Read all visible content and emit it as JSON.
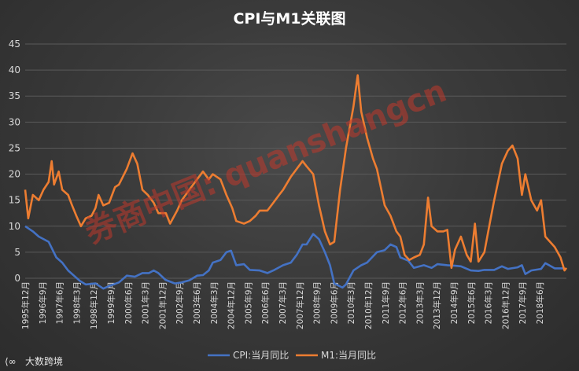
{
  "chart_data": {
    "type": "line",
    "title": "CPI与M1关联图",
    "ylim": [
      0,
      45
    ],
    "y_ticks": [
      0,
      5,
      10,
      15,
      20,
      25,
      30,
      35,
      40,
      45
    ],
    "x_ticks": [
      "1995年12月",
      "1996年9月",
      "1997年6月",
      "1998年3月",
      "1998年12月",
      "1999年9月",
      "2000年6月",
      "2001年3月",
      "2001年12月",
      "2002年9月",
      "2003年6月",
      "2004年3月",
      "2004年12月",
      "2005年9月",
      "2006年6月",
      "2007年3月",
      "2007年12月",
      "2008年9月",
      "2009年6月",
      "2010年3月",
      "2010年12月",
      "2011年9月",
      "2012年6月",
      "2013年3月",
      "2013年12月",
      "2014年9月",
      "2015年6月",
      "2016年3月",
      "2016年12月",
      "2017年9月",
      "2018年6月"
    ],
    "x_start": "1995年12月",
    "x_end": "2018年12月",
    "grid": true,
    "legend_position": "bottom",
    "series": [
      {
        "name": "CPI:当月同比",
        "color": "#4472c4",
        "points": [
          [
            1995.92,
            10
          ],
          [
            1996.25,
            9
          ],
          [
            1996.5,
            8
          ],
          [
            1996.92,
            7
          ],
          [
            1997.25,
            4
          ],
          [
            1997.5,
            3
          ],
          [
            1997.75,
            1.5
          ],
          [
            1998.0,
            0.5
          ],
          [
            1998.25,
            -0.5
          ],
          [
            1998.5,
            -1.2
          ],
          [
            1998.92,
            -1
          ],
          [
            1999.25,
            -2
          ],
          [
            1999.5,
            -1.5
          ],
          [
            1999.92,
            -0.8
          ],
          [
            2000.25,
            0.5
          ],
          [
            2000.6,
            0.3
          ],
          [
            2000.92,
            1
          ],
          [
            2001.2,
            1
          ],
          [
            2001.4,
            1.5
          ],
          [
            2001.6,
            1
          ],
          [
            2001.9,
            -0.3
          ],
          [
            2002.3,
            -1
          ],
          [
            2002.6,
            -0.8
          ],
          [
            2002.92,
            -0.4
          ],
          [
            2003.25,
            0.5
          ],
          [
            2003.5,
            0.6
          ],
          [
            2003.75,
            1.5
          ],
          [
            2003.92,
            3
          ],
          [
            2004.25,
            3.5
          ],
          [
            2004.5,
            5
          ],
          [
            2004.7,
            5.3
          ],
          [
            2004.92,
            2.5
          ],
          [
            2005.25,
            2.7
          ],
          [
            2005.5,
            1.6
          ],
          [
            2005.92,
            1.5
          ],
          [
            2006.25,
            1
          ],
          [
            2006.5,
            1.5
          ],
          [
            2006.92,
            2.5
          ],
          [
            2007.25,
            3
          ],
          [
            2007.5,
            4.5
          ],
          [
            2007.75,
            6.5
          ],
          [
            2007.92,
            6.5
          ],
          [
            2008.2,
            8.5
          ],
          [
            2008.45,
            7.5
          ],
          [
            2008.7,
            5
          ],
          [
            2008.92,
            2.5
          ],
          [
            2009.1,
            -1
          ],
          [
            2009.45,
            -1.8
          ],
          [
            2009.6,
            -1.2
          ],
          [
            2009.92,
            1.5
          ],
          [
            2010.25,
            2.5
          ],
          [
            2010.5,
            3
          ],
          [
            2010.92,
            5
          ],
          [
            2011.25,
            5.4
          ],
          [
            2011.5,
            6.5
          ],
          [
            2011.75,
            6
          ],
          [
            2011.92,
            4
          ],
          [
            2012.25,
            3.4
          ],
          [
            2012.5,
            2
          ],
          [
            2012.92,
            2.5
          ],
          [
            2013.25,
            2
          ],
          [
            2013.5,
            2.7
          ],
          [
            2013.92,
            2.5
          ],
          [
            2014.25,
            2.4
          ],
          [
            2014.5,
            2.3
          ],
          [
            2014.92,
            1.5
          ],
          [
            2015.25,
            1.4
          ],
          [
            2015.5,
            1.6
          ],
          [
            2015.92,
            1.6
          ],
          [
            2016.25,
            2.3
          ],
          [
            2016.5,
            1.8
          ],
          [
            2016.92,
            2.1
          ],
          [
            2017.1,
            2.5
          ],
          [
            2017.25,
            0.8
          ],
          [
            2017.5,
            1.5
          ],
          [
            2017.92,
            1.8
          ],
          [
            2018.1,
            2.9
          ],
          [
            2018.5,
            1.9
          ],
          [
            2018.92,
            1.9
          ]
        ]
      },
      {
        "name": "M1:当月同比",
        "color": "#ed7d31",
        "points": [
          [
            1995.92,
            17
          ],
          [
            1996.05,
            11.5
          ],
          [
            1996.25,
            16
          ],
          [
            1996.5,
            15
          ],
          [
            1996.7,
            17
          ],
          [
            1996.92,
            18.5
          ],
          [
            1997.05,
            22.5
          ],
          [
            1997.15,
            18
          ],
          [
            1997.35,
            20.5
          ],
          [
            1997.5,
            17
          ],
          [
            1997.75,
            16
          ],
          [
            1997.92,
            14
          ],
          [
            1998.1,
            12
          ],
          [
            1998.3,
            10
          ],
          [
            1998.5,
            11.5
          ],
          [
            1998.75,
            12
          ],
          [
            1998.92,
            13.5
          ],
          [
            1999.05,
            16
          ],
          [
            1999.25,
            14
          ],
          [
            1999.5,
            14.5
          ],
          [
            1999.75,
            17.5
          ],
          [
            1999.92,
            18
          ],
          [
            2000.25,
            21
          ],
          [
            2000.5,
            24
          ],
          [
            2000.7,
            22
          ],
          [
            2000.92,
            17
          ],
          [
            2001.15,
            16
          ],
          [
            2001.4,
            14.5
          ],
          [
            2001.6,
            12.5
          ],
          [
            2001.92,
            12.5
          ],
          [
            2002.1,
            10.5
          ],
          [
            2002.4,
            13
          ],
          [
            2002.6,
            15
          ],
          [
            2002.92,
            17
          ],
          [
            2003.25,
            19
          ],
          [
            2003.5,
            20.5
          ],
          [
            2003.75,
            19
          ],
          [
            2003.92,
            20
          ],
          [
            2004.25,
            19
          ],
          [
            2004.5,
            16
          ],
          [
            2004.75,
            13.5
          ],
          [
            2004.92,
            11
          ],
          [
            2005.25,
            10.5
          ],
          [
            2005.5,
            11
          ],
          [
            2005.75,
            12
          ],
          [
            2005.92,
            13
          ],
          [
            2006.25,
            13
          ],
          [
            2006.5,
            14.5
          ],
          [
            2006.75,
            16
          ],
          [
            2006.92,
            17
          ],
          [
            2007.25,
            19.5
          ],
          [
            2007.5,
            21
          ],
          [
            2007.75,
            22.5
          ],
          [
            2007.92,
            21.5
          ],
          [
            2008.2,
            20
          ],
          [
            2008.45,
            14
          ],
          [
            2008.7,
            9
          ],
          [
            2008.92,
            6.5
          ],
          [
            2009.1,
            7
          ],
          [
            2009.35,
            17
          ],
          [
            2009.6,
            25
          ],
          [
            2009.92,
            33
          ],
          [
            2010.1,
            39
          ],
          [
            2010.25,
            32
          ],
          [
            2010.5,
            27
          ],
          [
            2010.75,
            23
          ],
          [
            2010.92,
            21
          ],
          [
            2011.25,
            14
          ],
          [
            2011.5,
            12
          ],
          [
            2011.75,
            9
          ],
          [
            2011.92,
            8
          ],
          [
            2012.1,
            4.5
          ],
          [
            2012.3,
            3.5
          ],
          [
            2012.5,
            4
          ],
          [
            2012.75,
            4.5
          ],
          [
            2012.92,
            6.5
          ],
          [
            2013.1,
            15.5
          ],
          [
            2013.25,
            10
          ],
          [
            2013.5,
            9
          ],
          [
            2013.75,
            9
          ],
          [
            2013.92,
            9.3
          ],
          [
            2014.1,
            2
          ],
          [
            2014.25,
            5.5
          ],
          [
            2014.5,
            8
          ],
          [
            2014.75,
            4.5
          ],
          [
            2014.92,
            3.2
          ],
          [
            2015.1,
            10.5
          ],
          [
            2015.25,
            3.2
          ],
          [
            2015.5,
            5
          ],
          [
            2015.75,
            11
          ],
          [
            2015.92,
            15
          ],
          [
            2016.25,
            22
          ],
          [
            2016.5,
            24.5
          ],
          [
            2016.7,
            25.5
          ],
          [
            2016.92,
            23
          ],
          [
            2017.1,
            16
          ],
          [
            2017.25,
            20
          ],
          [
            2017.5,
            15
          ],
          [
            2017.75,
            13
          ],
          [
            2017.92,
            15
          ],
          [
            2018.1,
            8
          ],
          [
            2018.5,
            6
          ],
          [
            2018.75,
            4
          ],
          [
            2018.92,
            1.5
          ],
          [
            2019.0,
            2
          ]
        ]
      }
    ]
  },
  "watermark": "券商中国: quanshangcn",
  "footer": {
    "logo_text": "大数跨境"
  }
}
